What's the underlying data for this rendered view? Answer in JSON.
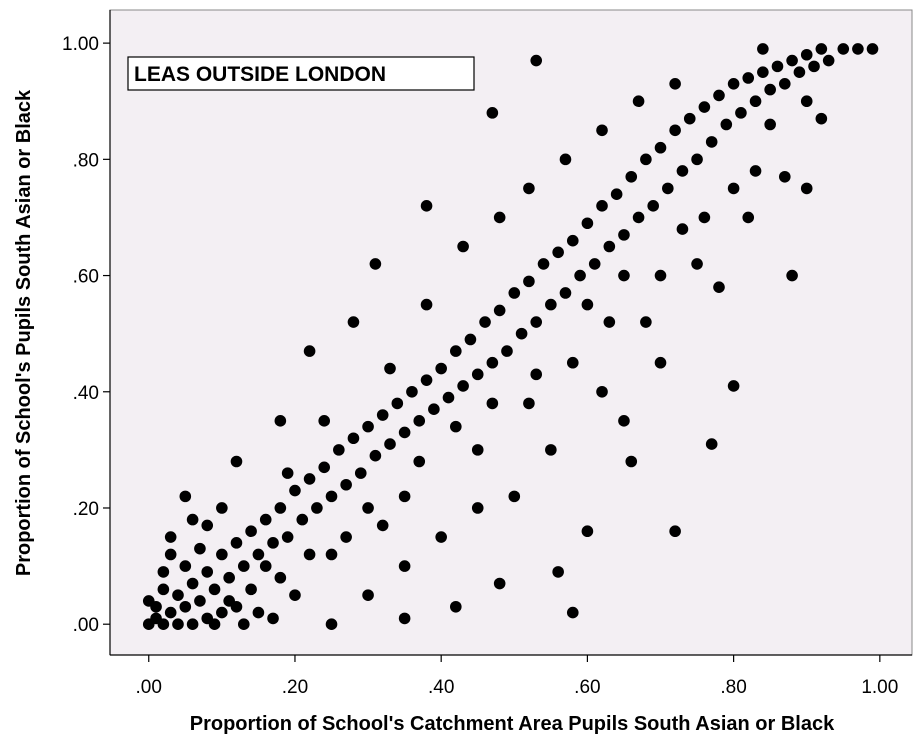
{
  "chart_data": {
    "type": "scatter",
    "annotation": "LEAS OUTSIDE LONDON",
    "x_label": "Proportion of School's Catchment Area Pupils South Asian or Black",
    "y_label": "Proportion of School's Pupils South Asian or Black",
    "color": "#000000",
    "background": "#f3eff3",
    "xlim": [
      -0.053,
      1.044
    ],
    "ylim": [
      -0.053,
      1.057
    ],
    "xticks": [
      {
        "value": 0,
        "label": ".00"
      },
      {
        "value": 0.2,
        "label": ".20"
      },
      {
        "value": 0.4,
        "label": ".40"
      },
      {
        "value": 0.6,
        "label": ".60"
      },
      {
        "value": 0.8,
        "label": ".80"
      },
      {
        "value": 1,
        "label": "1.00"
      }
    ],
    "yticks": [
      {
        "value": 0,
        "label": ".00"
      },
      {
        "value": 0.2,
        "label": ".20"
      },
      {
        "value": 0.4,
        "label": ".40"
      },
      {
        "value": 0.6,
        "label": ".60"
      },
      {
        "value": 0.8,
        "label": ".80"
      },
      {
        "value": 1,
        "label": "1.00"
      }
    ],
    "x": [
      0,
      0.01,
      0.02,
      0.01,
      0.03,
      0.04,
      0.05,
      0.02,
      0.06,
      0.07,
      0.08,
      0.05,
      0.09,
      0.1,
      0.11,
      0.12,
      0.03,
      0.13,
      0.14,
      0.15,
      0.06,
      0.08,
      0.1,
      0.12,
      0.04,
      0,
      0.02,
      0.07,
      0.16,
      0.17,
      0.18,
      0.19,
      0.2,
      0.21,
      0.22,
      0.23,
      0.24,
      0.25,
      0.26,
      0.27,
      0.28,
      0.29,
      0.3,
      0.31,
      0.32,
      0.33,
      0.34,
      0.35,
      0.36,
      0.37,
      0.38,
      0.39,
      0.4,
      0.41,
      0.42,
      0.43,
      0.44,
      0.45,
      0.46,
      0.47,
      0.48,
      0.49,
      0.5,
      0.51,
      0.52,
      0.53,
      0.54,
      0.55,
      0.56,
      0.57,
      0.58,
      0.59,
      0.6,
      0.61,
      0.62,
      0.63,
      0.64,
      0.65,
      0.66,
      0.67,
      0.68,
      0.69,
      0.7,
      0.71,
      0.72,
      0.73,
      0.74,
      0.75,
      0.76,
      0.77,
      0.78,
      0.79,
      0.8,
      0.81,
      0.82,
      0.83,
      0.84,
      0.85,
      0.86,
      0.87,
      0.88,
      0.89,
      0.9,
      0.91,
      0.92,
      0.93,
      0.95,
      0.97,
      0.99,
      0.84,
      0.53,
      0.47,
      0.38,
      0.31,
      0.58,
      0.35,
      0.72,
      0.77,
      0.8,
      0.88,
      0.87,
      0.9,
      0.66,
      0.6,
      0.56,
      0.48,
      0.42,
      0.25,
      0.3,
      0.4,
      0.5,
      0.55,
      0.62,
      0.7,
      0.68,
      0.75,
      0.82,
      0.78,
      0.65,
      0.45,
      0.35,
      0.2,
      0.15,
      0.1,
      0.05,
      0.12,
      0.18,
      0.22,
      0.28,
      0.33,
      0.38,
      0.43,
      0.48,
      0.52,
      0.57,
      0.62,
      0.67,
      0.72,
      0.85,
      0.92,
      0.3,
      0.25,
      0.35,
      0.45,
      0.52,
      0.58,
      0.63,
      0.7,
      0.76,
      0.83,
      0.9,
      0.18,
      0.14,
      0.22,
      0.09,
      0.13,
      0.17,
      0.03,
      0.06,
      0.08,
      0.11,
      0.16,
      0.19,
      0.24,
      0.27,
      0.32,
      0.37,
      0.42,
      0.47,
      0.53,
      0.6,
      0.65,
      0.73,
      0.8
    ],
    "y": [
      0,
      0.01,
      0,
      0.03,
      0.02,
      0.05,
      0.03,
      0.06,
      0.07,
      0.04,
      0.09,
      0.1,
      0.06,
      0.12,
      0.08,
      0.14,
      0.12,
      0.1,
      0.16,
      0.12,
      0,
      0.01,
      0.02,
      0.03,
      0,
      0.04,
      0.09,
      0.13,
      0.18,
      0.14,
      0.2,
      0.15,
      0.23,
      0.18,
      0.25,
      0.2,
      0.27,
      0.22,
      0.3,
      0.24,
      0.32,
      0.26,
      0.34,
      0.29,
      0.36,
      0.31,
      0.38,
      0.33,
      0.4,
      0.35,
      0.42,
      0.37,
      0.44,
      0.39,
      0.47,
      0.41,
      0.49,
      0.43,
      0.52,
      0.45,
      0.54,
      0.47,
      0.57,
      0.5,
      0.59,
      0.52,
      0.62,
      0.55,
      0.64,
      0.57,
      0.66,
      0.6,
      0.69,
      0.62,
      0.72,
      0.65,
      0.74,
      0.67,
      0.77,
      0.7,
      0.8,
      0.72,
      0.82,
      0.75,
      0.85,
      0.78,
      0.87,
      0.8,
      0.89,
      0.83,
      0.91,
      0.86,
      0.93,
      0.88,
      0.94,
      0.9,
      0.95,
      0.92,
      0.96,
      0.93,
      0.97,
      0.95,
      0.98,
      0.96,
      0.99,
      0.97,
      0.99,
      0.99,
      0.99,
      0.99,
      0.97,
      0.88,
      0.72,
      0.62,
      0.02,
      0.01,
      0.16,
      0.31,
      0.41,
      0.6,
      0.77,
      0.75,
      0.28,
      0.16,
      0.09,
      0.07,
      0.03,
      0,
      0.05,
      0.15,
      0.22,
      0.3,
      0.4,
      0.45,
      0.52,
      0.62,
      0.7,
      0.58,
      0.35,
      0.2,
      0.1,
      0.05,
      0.02,
      0.2,
      0.22,
      0.28,
      0.35,
      0.47,
      0.52,
      0.44,
      0.55,
      0.65,
      0.7,
      0.75,
      0.8,
      0.85,
      0.9,
      0.93,
      0.86,
      0.87,
      0.2,
      0.12,
      0.22,
      0.3,
      0.38,
      0.45,
      0.52,
      0.6,
      0.7,
      0.78,
      0.9,
      0.08,
      0.06,
      0.12,
      0,
      0,
      0.01,
      0.15,
      0.18,
      0.17,
      0.04,
      0.1,
      0.26,
      0.35,
      0.15,
      0.17,
      0.28,
      0.34,
      0.38,
      0.43,
      0.55,
      0.6,
      0.68,
      0.75
    ]
  }
}
